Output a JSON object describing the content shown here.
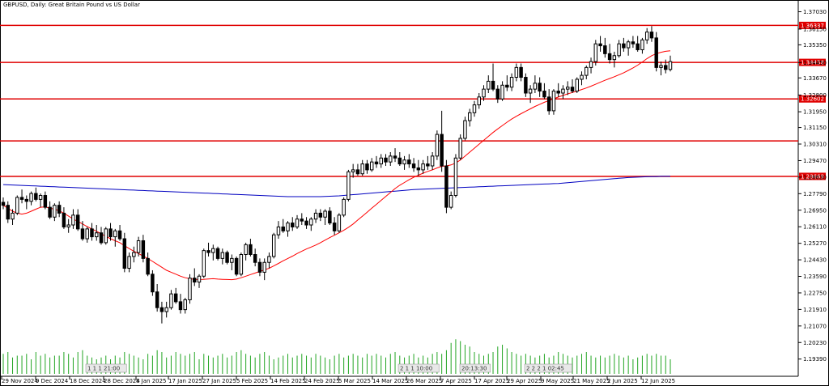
{
  "title": "GBPUSD, Daily:  Great Britain Pound vs US Dollar",
  "chart_data": {
    "type": "candlestick",
    "symbol": "GBPUSD",
    "timeframe": "Daily",
    "ylim": [
      1.1872,
      1.3738
    ],
    "y_ticks": [
      "1.37030",
      "1.36150",
      "1.35350",
      "1.34450",
      "1.33670",
      "1.32800",
      "1.31950",
      "1.31150",
      "1.30310",
      "1.29470",
      "1.28630",
      "1.27790",
      "1.26950",
      "1.26110",
      "1.25270",
      "1.24430",
      "1.23590",
      "1.22750",
      "1.21910",
      "1.21070",
      "1.20230",
      "1.19390"
    ],
    "x_labels": [
      "29 Nov 2024",
      "9 Dec 2024",
      "18 Dec 2024",
      "28 Dec 2024",
      "8 Jan 2025",
      "17 Jan 2025",
      "27 Jan 2025",
      "5 Feb 2025",
      "14 Feb 2025",
      "24 Feb 2025",
      "5 Mar 2025",
      "14 Mar 2025",
      "26 Mar 2025",
      "7 Apr 2025",
      "17 Apr 2025",
      "29 Apr 2025",
      "9 May 2025",
      "21 May 2025",
      "2 Jun 2025",
      "12 Jun 2025"
    ],
    "horizontal_levels": [
      {
        "value": 1.36337,
        "label": "1.36337",
        "color": "#e00000"
      },
      {
        "value": 1.34458,
        "label": "1.34458",
        "color": "#e00000"
      },
      {
        "value": 1.32602,
        "label": "1.32602",
        "color": "#e00000"
      },
      {
        "value": 1.3047,
        "label": "",
        "color": "#e00000"
      },
      {
        "value": 1.28669,
        "label": "1.28669",
        "color": "#e00000"
      }
    ],
    "ma_colors": {
      "fast": "#ff0000",
      "slow": "#0000c0"
    },
    "volume_color": "#22a522",
    "events": [
      {
        "label": "1 1 1 21:00"
      },
      {
        "label": "2 1 1 10:00"
      },
      {
        "label": "20:13:30"
      },
      {
        "label": "2 2 2 1 02:45"
      }
    ],
    "candles": [
      [
        1.2735,
        1.276,
        1.27,
        1.272
      ],
      [
        1.272,
        1.274,
        1.263,
        1.265
      ],
      [
        1.265,
        1.27,
        1.262,
        1.268
      ],
      [
        1.268,
        1.277,
        1.267,
        1.276
      ],
      [
        1.276,
        1.28,
        1.273,
        1.275
      ],
      [
        1.275,
        1.277,
        1.27,
        1.274
      ],
      [
        1.274,
        1.279,
        1.272,
        1.278
      ],
      [
        1.278,
        1.281,
        1.274,
        1.275
      ],
      [
        1.275,
        1.278,
        1.271,
        1.277
      ],
      [
        1.277,
        1.279,
        1.27,
        1.271
      ],
      [
        1.271,
        1.274,
        1.265,
        1.266
      ],
      [
        1.266,
        1.273,
        1.264,
        1.272
      ],
      [
        1.272,
        1.274,
        1.266,
        1.268
      ],
      [
        1.268,
        1.271,
        1.26,
        1.261
      ],
      [
        1.261,
        1.265,
        1.258,
        1.262
      ],
      [
        1.262,
        1.27,
        1.26,
        1.267
      ],
      [
        1.267,
        1.27,
        1.259,
        1.26
      ],
      [
        1.26,
        1.264,
        1.254,
        1.255
      ],
      [
        1.255,
        1.261,
        1.253,
        1.26
      ],
      [
        1.26,
        1.263,
        1.254,
        1.256
      ],
      [
        1.256,
        1.262,
        1.254,
        1.258
      ],
      [
        1.258,
        1.261,
        1.252,
        1.253
      ],
      [
        1.253,
        1.261,
        1.252,
        1.26
      ],
      [
        1.26,
        1.263,
        1.254,
        1.256
      ],
      [
        1.256,
        1.26,
        1.251,
        1.259
      ],
      [
        1.259,
        1.262,
        1.254,
        1.255
      ],
      [
        1.255,
        1.258,
        1.238,
        1.24
      ],
      [
        1.24,
        1.248,
        1.238,
        1.246
      ],
      [
        1.246,
        1.251,
        1.243,
        1.248
      ],
      [
        1.248,
        1.256,
        1.246,
        1.254
      ],
      [
        1.254,
        1.257,
        1.243,
        1.245
      ],
      [
        1.245,
        1.248,
        1.236,
        1.237
      ],
      [
        1.237,
        1.239,
        1.226,
        1.228
      ],
      [
        1.228,
        1.232,
        1.218,
        1.22
      ],
      [
        1.22,
        1.223,
        1.212,
        1.218
      ],
      [
        1.218,
        1.223,
        1.215,
        1.22
      ],
      [
        1.22,
        1.229,
        1.219,
        1.227
      ],
      [
        1.227,
        1.23,
        1.222,
        1.223
      ],
      [
        1.223,
        1.227,
        1.217,
        1.219
      ],
      [
        1.219,
        1.225,
        1.217,
        1.224
      ],
      [
        1.224,
        1.237,
        1.222,
        1.235
      ],
      [
        1.235,
        1.24,
        1.231,
        1.233
      ],
      [
        1.233,
        1.237,
        1.23,
        1.236
      ],
      [
        1.236,
        1.25,
        1.235,
        1.249
      ],
      [
        1.249,
        1.253,
        1.246,
        1.248
      ],
      [
        1.248,
        1.252,
        1.244,
        1.25
      ],
      [
        1.25,
        1.251,
        1.244,
        1.245
      ],
      [
        1.245,
        1.25,
        1.242,
        1.248
      ],
      [
        1.248,
        1.249,
        1.242,
        1.243
      ],
      [
        1.243,
        1.247,
        1.239,
        1.245
      ],
      [
        1.245,
        1.246,
        1.236,
        1.237
      ],
      [
        1.237,
        1.248,
        1.236,
        1.247
      ],
      [
        1.247,
        1.253,
        1.244,
        1.252
      ],
      [
        1.252,
        1.255,
        1.246,
        1.247
      ],
      [
        1.247,
        1.25,
        1.241,
        1.243
      ],
      [
        1.243,
        1.245,
        1.236,
        1.238
      ],
      [
        1.238,
        1.245,
        1.234,
        1.243
      ],
      [
        1.243,
        1.248,
        1.24,
        1.246
      ],
      [
        1.246,
        1.258,
        1.245,
        1.257
      ],
      [
        1.257,
        1.264,
        1.255,
        1.261
      ],
      [
        1.261,
        1.265,
        1.258,
        1.259
      ],
      [
        1.259,
        1.264,
        1.256,
        1.263
      ],
      [
        1.263,
        1.266,
        1.259,
        1.261
      ],
      [
        1.261,
        1.267,
        1.26,
        1.265
      ],
      [
        1.265,
        1.268,
        1.262,
        1.264
      ],
      [
        1.264,
        1.266,
        1.26,
        1.262
      ],
      [
        1.262,
        1.266,
        1.259,
        1.265
      ],
      [
        1.265,
        1.27,
        1.263,
        1.268
      ],
      [
        1.268,
        1.27,
        1.264,
        1.266
      ],
      [
        1.266,
        1.27,
        1.262,
        1.269
      ],
      [
        1.269,
        1.271,
        1.262,
        1.263
      ],
      [
        1.263,
        1.266,
        1.257,
        1.259
      ],
      [
        1.259,
        1.268,
        1.258,
        1.267
      ],
      [
        1.267,
        1.276,
        1.266,
        1.275
      ],
      [
        1.275,
        1.29,
        1.274,
        1.289
      ],
      [
        1.289,
        1.293,
        1.286,
        1.29
      ],
      [
        1.29,
        1.293,
        1.287,
        1.288
      ],
      [
        1.288,
        1.295,
        1.287,
        1.293
      ],
      [
        1.293,
        1.295,
        1.288,
        1.29
      ],
      [
        1.29,
        1.296,
        1.289,
        1.294
      ],
      [
        1.294,
        1.297,
        1.291,
        1.293
      ],
      [
        1.293,
        1.298,
        1.291,
        1.296
      ],
      [
        1.296,
        1.298,
        1.292,
        1.294
      ],
      [
        1.294,
        1.299,
        1.292,
        1.297
      ],
      [
        1.297,
        1.301,
        1.294,
        1.296
      ],
      [
        1.296,
        1.299,
        1.292,
        1.293
      ],
      [
        1.293,
        1.297,
        1.29,
        1.295
      ],
      [
        1.295,
        1.298,
        1.291,
        1.293
      ],
      [
        1.293,
        1.296,
        1.289,
        1.291
      ],
      [
        1.291,
        1.295,
        1.287,
        1.29
      ],
      [
        1.29,
        1.295,
        1.288,
        1.293
      ],
      [
        1.293,
        1.297,
        1.29,
        1.292
      ],
      [
        1.292,
        1.299,
        1.29,
        1.297
      ],
      [
        1.297,
        1.31,
        1.295,
        1.308
      ],
      [
        1.308,
        1.32,
        1.289,
        1.292
      ],
      [
        1.292,
        1.295,
        1.268,
        1.271
      ],
      [
        1.271,
        1.279,
        1.27,
        1.277
      ],
      [
        1.277,
        1.298,
        1.276,
        1.296
      ],
      [
        1.296,
        1.308,
        1.295,
        1.306
      ],
      [
        1.306,
        1.317,
        1.305,
        1.315
      ],
      [
        1.315,
        1.321,
        1.312,
        1.319
      ],
      [
        1.319,
        1.325,
        1.317,
        1.323
      ],
      [
        1.323,
        1.329,
        1.321,
        1.327
      ],
      [
        1.327,
        1.333,
        1.325,
        1.331
      ],
      [
        1.331,
        1.338,
        1.329,
        1.335
      ],
      [
        1.335,
        1.344,
        1.33,
        1.331
      ],
      [
        1.331,
        1.333,
        1.324,
        1.326
      ],
      [
        1.326,
        1.335,
        1.325,
        1.333
      ],
      [
        1.333,
        1.338,
        1.33,
        1.332
      ],
      [
        1.332,
        1.339,
        1.33,
        1.337
      ],
      [
        1.337,
        1.344,
        1.335,
        1.342
      ],
      [
        1.342,
        1.344,
        1.335,
        1.337
      ],
      [
        1.337,
        1.339,
        1.327,
        1.329
      ],
      [
        1.329,
        1.333,
        1.324,
        1.331
      ],
      [
        1.331,
        1.338,
        1.329,
        1.334
      ],
      [
        1.334,
        1.337,
        1.327,
        1.33
      ],
      [
        1.33,
        1.334,
        1.326,
        1.327
      ],
      [
        1.327,
        1.331,
        1.318,
        1.32
      ],
      [
        1.32,
        1.331,
        1.318,
        1.33
      ],
      [
        1.33,
        1.334,
        1.327,
        1.329
      ],
      [
        1.329,
        1.333,
        1.326,
        1.331
      ],
      [
        1.331,
        1.335,
        1.328,
        1.332
      ],
      [
        1.332,
        1.336,
        1.329,
        1.33
      ],
      [
        1.33,
        1.337,
        1.329,
        1.336
      ],
      [
        1.336,
        1.34,
        1.333,
        1.338
      ],
      [
        1.338,
        1.343,
        1.336,
        1.342
      ],
      [
        1.342,
        1.347,
        1.339,
        1.345
      ],
      [
        1.345,
        1.356,
        1.343,
        1.354
      ],
      [
        1.354,
        1.358,
        1.35,
        1.353
      ],
      [
        1.353,
        1.357,
        1.347,
        1.349
      ],
      [
        1.349,
        1.354,
        1.344,
        1.346
      ],
      [
        1.346,
        1.35,
        1.342,
        1.348
      ],
      [
        1.348,
        1.356,
        1.347,
        1.354
      ],
      [
        1.354,
        1.357,
        1.35,
        1.352
      ],
      [
        1.352,
        1.356,
        1.348,
        1.355
      ],
      [
        1.355,
        1.358,
        1.352,
        1.354
      ],
      [
        1.354,
        1.358,
        1.35,
        1.351
      ],
      [
        1.351,
        1.357,
        1.349,
        1.356
      ],
      [
        1.356,
        1.362,
        1.354,
        1.36
      ],
      [
        1.36,
        1.363,
        1.355,
        1.357
      ],
      [
        1.357,
        1.36,
        1.34,
        1.342
      ],
      [
        1.342,
        1.345,
        1.338,
        1.343
      ],
      [
        1.343,
        1.346,
        1.339,
        1.341
      ],
      [
        1.341,
        1.348,
        1.34,
        1.345
      ]
    ],
    "ma_fast": [
      1.272,
      1.2705,
      1.269,
      1.268,
      1.2675,
      1.268,
      1.269,
      1.27,
      1.271,
      1.2712,
      1.2705,
      1.27,
      1.2692,
      1.268,
      1.2665,
      1.265,
      1.2638,
      1.2625,
      1.2612,
      1.26,
      1.2588,
      1.2575,
      1.2562,
      1.255,
      1.254,
      1.253,
      1.2515,
      1.25,
      1.2487,
      1.2475,
      1.2462,
      1.245,
      1.2435,
      1.242,
      1.2405,
      1.239,
      1.238,
      1.237,
      1.236,
      1.2352,
      1.2347,
      1.2344,
      1.2343,
      1.2344,
      1.2346,
      1.2347,
      1.2345,
      1.2344,
      1.2343,
      1.2342,
      1.2345,
      1.2352,
      1.236,
      1.2368,
      1.2376,
      1.2384,
      1.2392,
      1.24,
      1.2412,
      1.2425,
      1.2438,
      1.245,
      1.2462,
      1.2475,
      1.2487,
      1.2498,
      1.2508,
      1.2518,
      1.253,
      1.2543,
      1.2556,
      1.2568,
      1.258,
      1.2593,
      1.2608,
      1.2625,
      1.2645,
      1.2665,
      1.2685,
      1.2705,
      1.2725,
      1.2745,
      1.2765,
      1.2785,
      1.2805,
      1.2822,
      1.2836,
      1.285,
      1.2862,
      1.2873,
      1.2883,
      1.2892,
      1.29,
      1.291,
      1.2918,
      1.292,
      1.2925,
      1.2935,
      1.295,
      1.297,
      1.299,
      1.301,
      1.303,
      1.305,
      1.307,
      1.309,
      1.3108,
      1.3125,
      1.3142,
      1.3158,
      1.3172,
      1.3185,
      1.3198,
      1.321,
      1.3222,
      1.3233,
      1.3243,
      1.3252,
      1.3261,
      1.327,
      1.3278,
      1.3286,
      1.3293,
      1.33,
      1.3308,
      1.3316,
      1.3325,
      1.3335,
      1.3345,
      1.3355,
      1.3364,
      1.3373,
      1.3383,
      1.3393,
      1.3405,
      1.3418,
      1.3432,
      1.3448,
      1.3465,
      1.348,
      1.349,
      1.3497,
      1.3502,
      1.3505
    ],
    "ma_slow": [
      1.2825,
      1.2824,
      1.2823,
      1.2822,
      1.2821,
      1.282,
      1.2819,
      1.2818,
      1.2817,
      1.2816,
      1.2815,
      1.2814,
      1.2813,
      1.2812,
      1.2811,
      1.281,
      1.2809,
      1.2808,
      1.2807,
      1.2806,
      1.2805,
      1.2804,
      1.2803,
      1.2802,
      1.2801,
      1.28,
      1.2799,
      1.2798,
      1.2797,
      1.2796,
      1.2795,
      1.2794,
      1.2793,
      1.2792,
      1.2791,
      1.279,
      1.2789,
      1.2788,
      1.2787,
      1.2786,
      1.2785,
      1.2784,
      1.2783,
      1.2782,
      1.2781,
      1.278,
      1.2779,
      1.2778,
      1.2777,
      1.2776,
      1.2775,
      1.2774,
      1.2773,
      1.2772,
      1.2771,
      1.277,
      1.2769,
      1.2768,
      1.2767,
      1.2766,
      1.2765,
      1.2764,
      1.2764,
      1.2764,
      1.2764,
      1.2764,
      1.2764,
      1.2764,
      1.2764,
      1.2765,
      1.2766,
      1.2767,
      1.2768,
      1.277,
      1.2772,
      1.2774,
      1.2776,
      1.2778,
      1.278,
      1.2782,
      1.2784,
      1.2786,
      1.2788,
      1.279,
      1.2792,
      1.2794,
      1.2796,
      1.2798,
      1.28,
      1.2801,
      1.2802,
      1.2803,
      1.2804,
      1.2805,
      1.2806,
      1.2807,
      1.2808,
      1.2809,
      1.281,
      1.2811,
      1.2812,
      1.2813,
      1.2814,
      1.2815,
      1.2816,
      1.2817,
      1.2818,
      1.2819,
      1.282,
      1.2821,
      1.2822,
      1.2823,
      1.2824,
      1.2825,
      1.2826,
      1.2827,
      1.2828,
      1.2829,
      1.283,
      1.2831,
      1.2833,
      1.2835,
      1.2837,
      1.2839,
      1.2841,
      1.2843,
      1.2845,
      1.2847,
      1.2849,
      1.2851,
      1.2853,
      1.2855,
      1.2857,
      1.2859,
      1.2861,
      1.2862,
      1.2863,
      1.2864,
      1.2865,
      1.2866,
      1.2866,
      1.2867,
      1.2867,
      1.2867
    ],
    "volume": [
      0.55,
      0.6,
      0.45,
      0.5,
      0.5,
      0.55,
      0.4,
      0.6,
      0.5,
      0.55,
      0.45,
      0.5,
      0.5,
      0.6,
      0.55,
      0.45,
      0.6,
      0.65,
      0.5,
      0.45,
      0.4,
      0.45,
      0.5,
      0.4,
      0.5,
      0.45,
      0.6,
      0.55,
      0.5,
      0.45,
      0.4,
      0.55,
      0.5,
      0.65,
      0.6,
      0.45,
      0.5,
      0.6,
      0.55,
      0.5,
      0.55,
      0.6,
      0.4,
      0.55,
      0.5,
      0.45,
      0.5,
      0.55,
      0.45,
      0.5,
      0.6,
      0.65,
      0.55,
      0.5,
      0.45,
      0.55,
      0.6,
      0.5,
      0.4,
      0.45,
      0.5,
      0.55,
      0.45,
      0.5,
      0.55,
      0.5,
      0.45,
      0.55,
      0.5,
      0.45,
      0.4,
      0.5,
      0.55,
      0.45,
      0.5,
      0.55,
      0.5,
      0.45,
      0.55,
      0.5,
      0.55,
      0.5,
      0.45,
      0.55,
      0.6,
      0.5,
      0.45,
      0.5,
      0.55,
      0.45,
      0.5,
      0.45,
      0.55,
      0.6,
      0.55,
      0.65,
      0.85,
      0.95,
      0.9,
      0.8,
      0.75,
      0.6,
      0.55,
      0.5,
      0.55,
      0.6,
      0.75,
      0.8,
      0.7,
      0.6,
      0.55,
      0.5,
      0.55,
      0.5,
      0.45,
      0.5,
      0.55,
      0.45,
      0.5,
      0.6,
      0.55,
      0.5,
      0.45,
      0.5,
      0.55,
      0.6,
      0.5,
      0.45,
      0.5,
      0.45,
      0.5,
      0.55,
      0.5,
      0.45,
      0.5,
      0.4,
      0.45,
      0.5,
      0.55,
      0.5,
      0.55,
      0.5,
      0.5,
      0.4
    ]
  }
}
